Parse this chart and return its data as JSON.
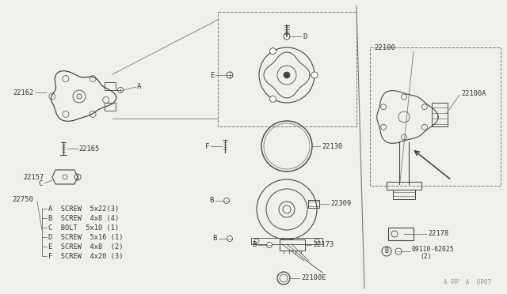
{
  "bg_color": "#f0f0eb",
  "line_color": "#777777",
  "dark_color": "#444444",
  "label_color": "#333333",
  "figsize": [
    6.4,
    3.72
  ],
  "dpi": 100,
  "xlim": [
    0,
    640
  ],
  "ylim": [
    372,
    0
  ],
  "legend_items": [
    [
      "A",
      "SCREW",
      "5x22(3)"
    ],
    [
      "B",
      "SCREW",
      "4x8 (4)"
    ],
    [
      "C",
      "BOLT",
      "5x10 (1)"
    ],
    [
      "D",
      "SCREW",
      "5x16 (1)"
    ],
    [
      "E",
      "SCREW",
      "4x8  (2)"
    ],
    [
      "F",
      "SCREW",
      "4x20 (3)"
    ]
  ],
  "watermark": "A PP' A  0P07"
}
